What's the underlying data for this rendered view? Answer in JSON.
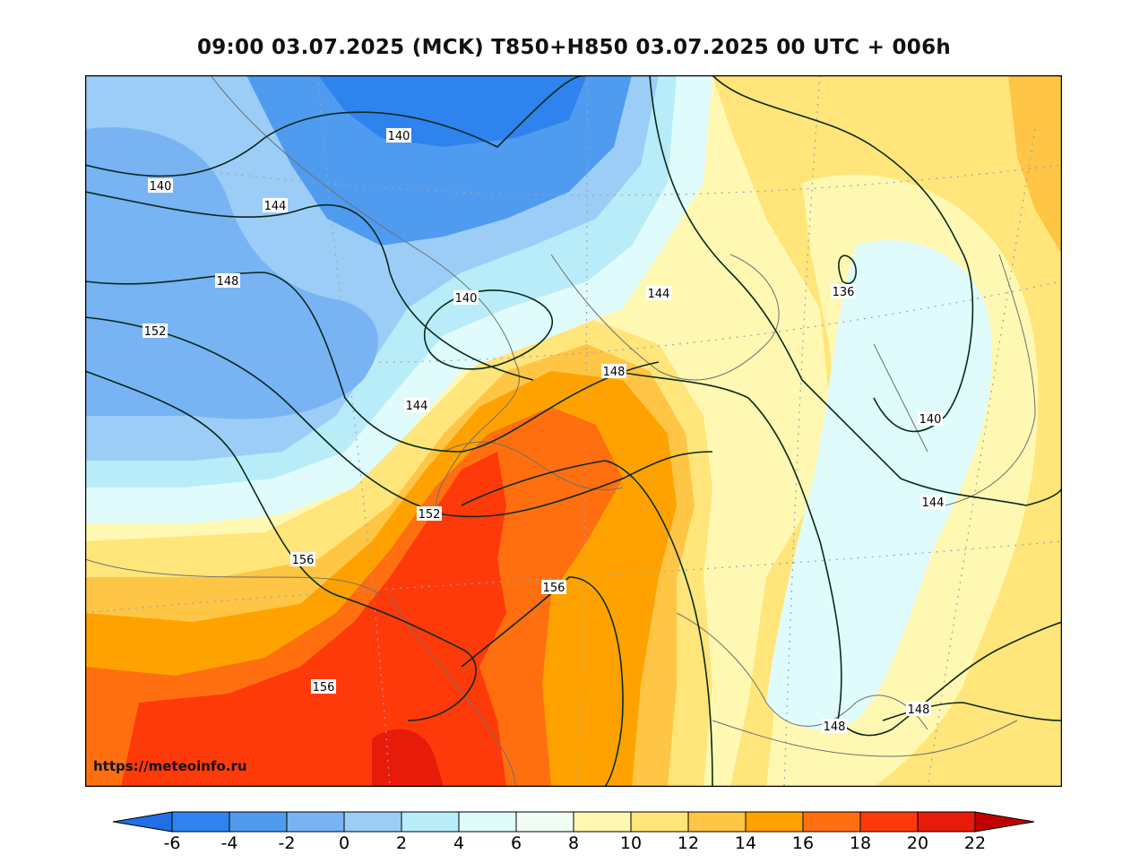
{
  "title": "09:00 03.07.2025 (MCK) T850+H850 03.07.2025 00 UTC + 006h",
  "watermark": "https://meteoinfo.ru",
  "colors": {
    "c_-6": "#1f6fe6",
    "c_-4": "#2f83ee",
    "c_-2": "#4f9bf0",
    "c_0": "#78b4f4",
    "c_2": "#9ccdf7",
    "c_4": "#b8ecf8",
    "c_6": "#e0fbfb",
    "c_8": "#fff8b2",
    "c_10": "#ffe57a",
    "c_12": "#ffc545",
    "c_14": "#ffa200",
    "c_16": "#ff6f10",
    "c_18": "#ff3a0a",
    "c_20": "#e81a0a",
    "c_22": "#c00000",
    "contour": "#0b2a1a",
    "coast": "#6f6f6f"
  },
  "colorbar": {
    "ticks": [
      "-6",
      "-4",
      "-2",
      "0",
      "2",
      "4",
      "6",
      "8",
      "10",
      "12",
      "14",
      "16",
      "18",
      "20",
      "22"
    ]
  },
  "contour_labels": [
    {
      "id": "lbl-140-a",
      "text": "140"
    },
    {
      "id": "lbl-140-b",
      "text": "140"
    },
    {
      "id": "lbl-140-c",
      "text": "140"
    },
    {
      "id": "lbl-140-d",
      "text": "140"
    },
    {
      "id": "lbl-144-a",
      "text": "144"
    },
    {
      "id": "lbl-144-b",
      "text": "144"
    },
    {
      "id": "lbl-144-c",
      "text": "144"
    },
    {
      "id": "lbl-144-d",
      "text": "144"
    },
    {
      "id": "lbl-148-a",
      "text": "148"
    },
    {
      "id": "lbl-148-b",
      "text": "148"
    },
    {
      "id": "lbl-148-c",
      "text": "148"
    },
    {
      "id": "lbl-148-d",
      "text": "148"
    },
    {
      "id": "lbl-152-a",
      "text": "152"
    },
    {
      "id": "lbl-152-b",
      "text": "152"
    },
    {
      "id": "lbl-156-a",
      "text": "156"
    },
    {
      "id": "lbl-156-b",
      "text": "156"
    },
    {
      "id": "lbl-156-c",
      "text": "156"
    },
    {
      "id": "lbl-136",
      "text": "136"
    }
  ]
}
